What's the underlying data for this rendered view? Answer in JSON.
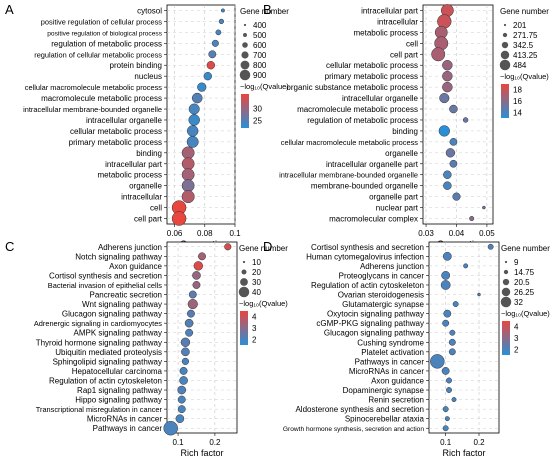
{
  "color_scale": {
    "low": "#2b8fd6",
    "high": "#e8473f"
  },
  "chart_data": [
    {
      "panel": "A",
      "type": "scatter",
      "xlabel": "Gene ratio",
      "xlim": [
        0.055,
        0.1
      ],
      "xticks": [
        0.06,
        0.08,
        0.1
      ],
      "xtick_labels": [
        "0.06",
        "0.08",
        "0.1"
      ],
      "size_title": "Gene number",
      "size_values": [
        400,
        500,
        600,
        700,
        800,
        900
      ],
      "size_labels": [
        "400",
        "500",
        "600",
        "700",
        "800",
        "900"
      ],
      "color_title": "−log₁₀(Qvalue)",
      "color_range": [
        22,
        36
      ],
      "color_ticks": [
        30,
        25
      ],
      "color_tick_labels": [
        "30",
        "25"
      ],
      "categories": [
        "cytosol",
        "positive regulation of cellular process",
        "positive regulation of biological process",
        "regulation of metabolic process",
        "regulation of cellular metabolic process",
        "protein binding",
        "nucleus",
        "cellular macromolecule metabolic process",
        "macromolecule metabolic process",
        "intracellular membrane-bounded organelle",
        "intracellular organelle",
        "cellular metabolic process",
        "primary metabolic process",
        "binding",
        "intracellular part",
        "metabolic process",
        "organelle",
        "intracellular",
        "cell",
        "cell part"
      ],
      "x": [
        0.092,
        0.091,
        0.089,
        0.087,
        0.085,
        0.084,
        0.082,
        0.078,
        0.075,
        0.073,
        0.073,
        0.072,
        0.072,
        0.069,
        0.069,
        0.069,
        0.069,
        0.069,
        0.063,
        0.063
      ],
      "size": [
        420,
        480,
        500,
        560,
        600,
        620,
        620,
        660,
        720,
        740,
        760,
        760,
        780,
        820,
        820,
        820,
        820,
        830,
        900,
        900
      ],
      "color": [
        23,
        24,
        24,
        24,
        25,
        35,
        23,
        23,
        25,
        24,
        23,
        24,
        24,
        31,
        32,
        31,
        28,
        32,
        36,
        36
      ]
    },
    {
      "panel": "B",
      "type": "scatter",
      "xlabel": "Gene ratio",
      "xlim": [
        0.029,
        0.052
      ],
      "xticks": [
        0.03,
        0.04,
        0.05
      ],
      "xtick_labels": [
        "0.03",
        "0.04",
        "0.05"
      ],
      "size_title": "Gene number",
      "size_values": [
        201,
        271.75,
        342.5,
        413.25,
        484
      ],
      "size_labels": [
        "201",
        "271.75",
        "342.5",
        "413.25",
        "484"
      ],
      "color_title": "−log₁₀(Qvalue)",
      "color_range": [
        13,
        19
      ],
      "color_ticks": [
        18,
        16,
        14
      ],
      "color_tick_labels": [
        "18",
        "16",
        "14"
      ],
      "categories": [
        "intracellular part",
        "intracellular",
        "metabolic process",
        "cell",
        "cell part",
        "cellular metabolic process",
        "primary metabolic process",
        "organic substance metabolic process",
        "intracellular organelle",
        "macromolecule metabolic process",
        "regulation of metabolic process",
        "binding",
        "cellular macromolecule metabolic process",
        "organelle",
        "intracellular organelle part",
        "intracellular membrane-bounded organelle",
        "membrane-bounded organelle",
        "organelle part",
        "nuclear part",
        "macromolecular complex"
      ],
      "x": [
        0.037,
        0.036,
        0.035,
        0.035,
        0.034,
        0.037,
        0.037,
        0.037,
        0.036,
        0.039,
        0.043,
        0.036,
        0.039,
        0.038,
        0.039,
        0.037,
        0.037,
        0.04,
        0.049,
        0.045
      ],
      "size": [
        440,
        480,
        440,
        470,
        470,
        380,
        380,
        380,
        370,
        330,
        250,
        400,
        310,
        350,
        310,
        330,
        330,
        320,
        201,
        240
      ],
      "color": [
        18,
        18,
        17,
        17,
        17,
        16.5,
        16.5,
        16.5,
        15,
        15,
        15,
        13,
        14,
        15,
        14.5,
        14,
        14,
        14.5,
        15,
        16
      ]
    },
    {
      "panel": "C",
      "type": "scatter",
      "xlabel": "Rich factor",
      "xlim": [
        0.07,
        0.26
      ],
      "xticks": [
        0.1,
        0.2
      ],
      "xtick_labels": [
        "0.1",
        "0.2"
      ],
      "size_title": "Gene number",
      "size_values": [
        10,
        20,
        30,
        40
      ],
      "size_labels": [
        "10",
        "20",
        "30",
        "40"
      ],
      "color_title": "−log₁₀(Qvalue)",
      "color_range": [
        1.5,
        4.5
      ],
      "color_ticks": [
        4,
        3,
        2
      ],
      "color_tick_labels": [
        "4",
        "3",
        "2"
      ],
      "categories": [
        "Adherens junction",
        "Notch signaling pathway",
        "Axon guidance",
        "Cortisol synthesis and secretion",
        "Bacterial invasion of epithelial cells",
        "Pancreatic secretion",
        "Wnt signaling pathway",
        "Glucagon signaling pathway",
        "Adrenergic signaling in cardiomyocytes",
        "AMPK signaling pathway",
        "Thyroid hormone signaling pathway",
        "Ubiquitin mediated proteolysis",
        "Sphingolipid signaling pathway",
        "Hepatocellular carcinoma",
        "Regulation of actin cytoskeleton",
        "Rap1 signaling pathway",
        "Hippo signaling pathway",
        "Transcriptional misregulation in cancer",
        "MicroRNAs in cancer",
        "Pathways in cancer"
      ],
      "x": [
        0.235,
        0.165,
        0.155,
        0.15,
        0.15,
        0.14,
        0.14,
        0.135,
        0.13,
        0.13,
        0.12,
        0.12,
        0.12,
        0.115,
        0.115,
        0.11,
        0.11,
        0.11,
        0.105,
        0.08
      ],
      "size": [
        20,
        22,
        26,
        24,
        22,
        22,
        28,
        22,
        24,
        22,
        26,
        24,
        20,
        22,
        24,
        24,
        22,
        22,
        24,
        40
      ],
      "color": [
        4.2,
        3.4,
        4.3,
        3.2,
        3.2,
        2.3,
        3.3,
        2.2,
        2.2,
        2.1,
        2.2,
        2.1,
        2.0,
        2.0,
        2.0,
        2.1,
        2.0,
        2.0,
        2.0,
        2.0
      ]
    },
    {
      "panel": "D",
      "type": "scatter",
      "xlabel": "Rich factor",
      "xlim": [
        0.05,
        0.26
      ],
      "xticks": [
        0.1,
        0.2
      ],
      "xtick_labels": [
        "0.1",
        "0.2"
      ],
      "size_title": "Gene number",
      "size_values": [
        9,
        14.75,
        20.5,
        26.25,
        32
      ],
      "size_labels": [
        "9",
        "14.75",
        "20.5",
        "26.25",
        "32"
      ],
      "color_title": "−log₁₀(Qvalue)",
      "color_range": [
        1.5,
        4.5
      ],
      "color_ticks": [
        4,
        3,
        2
      ],
      "color_tick_labels": [
        "4",
        "3",
        "2"
      ],
      "categories": [
        "Cortisol synthesis and secretion",
        "Human cytomegalovirus infection",
        "Adherens junction",
        "Proteoglycans in cancer",
        "Regulation of actin cytoskeleton",
        "Ovarian steroidogenesis",
        "Glutamatergic synapse",
        "Oxytocin signaling pathway",
        "cGMP-PKG signaling pathway",
        "Glucagon signaling pathway",
        "Cushing syndrome",
        "Platelet activation",
        "Pathways in cancer",
        "MicroRNAs in cancer",
        "Axon guidance",
        "Dopaminergic synapse",
        "Renin secretion",
        "Aldosterone synthesis and secretion",
        "Spinocerebellar ataxia",
        "Growth hormone synthesis, secretion and action"
      ],
      "x": [
        0.235,
        0.105,
        0.16,
        0.1,
        0.1,
        0.2,
        0.13,
        0.105,
        0.1,
        0.12,
        0.12,
        0.12,
        0.075,
        0.1,
        0.11,
        0.11,
        0.125,
        0.1,
        0.105,
        0.1
      ],
      "size": [
        14,
        20,
        12,
        20,
        22,
        9,
        14,
        18,
        16,
        14,
        16,
        16,
        32,
        18,
        14,
        14,
        12,
        14,
        12,
        14
      ],
      "color": [
        2.2,
        2.0,
        2.0,
        2.0,
        2.0,
        2.0,
        2.0,
        2.0,
        2.0,
        2.0,
        2.0,
        2.0,
        2.0,
        2.0,
        2.0,
        2.0,
        2.0,
        2.0,
        2.0,
        2.0
      ]
    }
  ]
}
